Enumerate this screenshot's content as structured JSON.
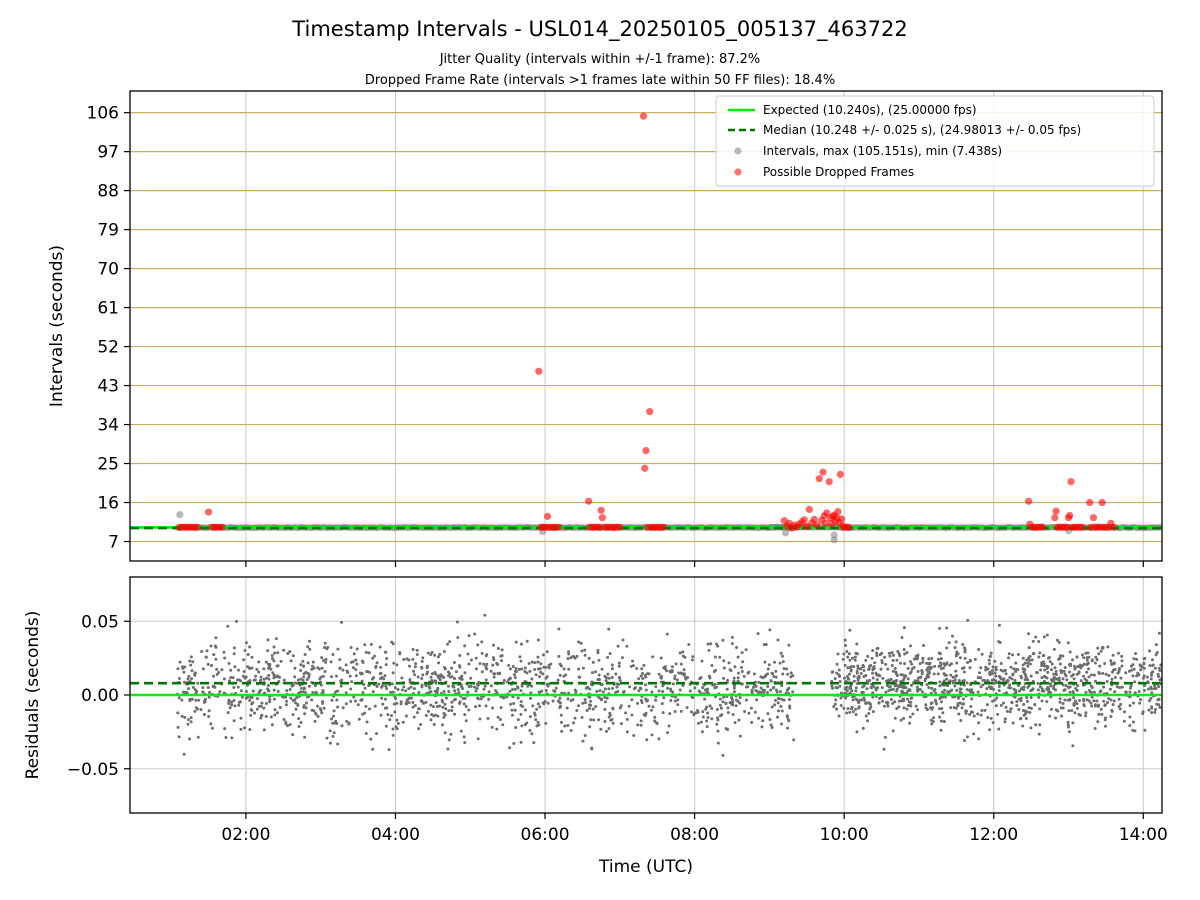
{
  "figure": {
    "title": "Timestamp Intervals - USL014_20250105_005137_463722",
    "subtitle_1": "Jitter Quality (intervals within +/-1 frame): 87.2%",
    "subtitle_2": "Dropped Frame Rate (intervals >1 frames late within 50 FF files): 18.4%"
  },
  "colors": {
    "expected": "#00ee00",
    "median": "#007700",
    "intervals": "#808080",
    "dropped": "#ff0000",
    "hgrid_top": "#c8b060",
    "vgrid": "#cccccc",
    "residuals": "#6e6e6e"
  },
  "chart_data": [
    {
      "type": "scatter",
      "panel": "intervals",
      "xlabel": "",
      "ylabel": "Intervals (seconds)",
      "xlim_hours": [
        0.45,
        14.25
      ],
      "ylim": [
        2.5,
        111
      ],
      "y_ticks": [
        7,
        16,
        25,
        34,
        43,
        52,
        61,
        70,
        79,
        88,
        97,
        106
      ],
      "y_tick_labels": [
        "7",
        "16",
        "25",
        "34",
        "43",
        "52",
        "61",
        "70",
        "79",
        "88",
        "97",
        "106"
      ],
      "x_ticks_hours": [
        2,
        4,
        6,
        8,
        10,
        12,
        14
      ],
      "grid": "on",
      "legend": {
        "placement": "top-right",
        "entries": [
          "Expected (10.240s), (25.00000 fps)",
          "Median (10.248 +/- 0.025 s), (24.98013 +/- 0.05 fps)",
          "Intervals, max (105.151s), min (7.438s)",
          "Possible Dropped Frames"
        ]
      },
      "expected_interval_s": 10.24,
      "median_interval_s": 10.248,
      "interval_segments": [
        {
          "start": "01:05",
          "end": "09:20",
          "value_s": 10.24
        },
        {
          "start": "09:00",
          "end": "09:55",
          "value_s": 10.3
        },
        {
          "start": "09:55",
          "end": "14:15",
          "value_s": 10.24
        }
      ],
      "gray_outliers": [
        {
          "x": "01:07",
          "y": 13.2
        },
        {
          "x": "05:58",
          "y": 9.3
        },
        {
          "x": "09:52",
          "y": 7.4
        },
        {
          "x": "09:52",
          "y": 8.5
        },
        {
          "x": "09:13",
          "y": 9.0
        },
        {
          "x": "13:00",
          "y": 9.5
        }
      ],
      "dropped_frames": [
        {
          "x": "01:07",
          "y": 10.3
        },
        {
          "x": "01:09",
          "y": 10.3
        },
        {
          "x": "01:11",
          "y": 10.3
        },
        {
          "x": "01:13",
          "y": 10.3
        },
        {
          "x": "01:15",
          "y": 10.3
        },
        {
          "x": "01:17",
          "y": 10.3
        },
        {
          "x": "01:19",
          "y": 10.3
        },
        {
          "x": "01:21",
          "y": 10.3
        },
        {
          "x": "01:30",
          "y": 13.8
        },
        {
          "x": "01:33",
          "y": 10.3
        },
        {
          "x": "01:35",
          "y": 10.3
        },
        {
          "x": "01:37",
          "y": 10.3
        },
        {
          "x": "01:39",
          "y": 10.3
        },
        {
          "x": "01:41",
          "y": 10.3
        },
        {
          "x": "05:55",
          "y": 46.3
        },
        {
          "x": "05:57",
          "y": 10.3
        },
        {
          "x": "05:59",
          "y": 10.3
        },
        {
          "x": "06:01",
          "y": 10.3
        },
        {
          "x": "06:02",
          "y": 12.8
        },
        {
          "x": "06:03",
          "y": 10.3
        },
        {
          "x": "06:05",
          "y": 10.3
        },
        {
          "x": "06:07",
          "y": 10.3
        },
        {
          "x": "06:09",
          "y": 10.3
        },
        {
          "x": "06:11",
          "y": 10.3
        },
        {
          "x": "06:35",
          "y": 16.3
        },
        {
          "x": "06:36",
          "y": 10.3
        },
        {
          "x": "06:38",
          "y": 10.3
        },
        {
          "x": "06:40",
          "y": 10.3
        },
        {
          "x": "06:42",
          "y": 10.3
        },
        {
          "x": "06:44",
          "y": 10.3
        },
        {
          "x": "06:45",
          "y": 14.2
        },
        {
          "x": "06:46",
          "y": 12.5
        },
        {
          "x": "06:48",
          "y": 10.3
        },
        {
          "x": "06:50",
          "y": 10.3
        },
        {
          "x": "06:52",
          "y": 10.3
        },
        {
          "x": "06:54",
          "y": 10.3
        },
        {
          "x": "06:56",
          "y": 10.3
        },
        {
          "x": "06:58",
          "y": 10.3
        },
        {
          "x": "07:00",
          "y": 10.3
        },
        {
          "x": "07:19",
          "y": 105.2
        },
        {
          "x": "07:20",
          "y": 23.9
        },
        {
          "x": "07:21",
          "y": 28.0
        },
        {
          "x": "07:22",
          "y": 10.3
        },
        {
          "x": "07:24",
          "y": 37.0
        },
        {
          "x": "07:25",
          "y": 10.3
        },
        {
          "x": "07:27",
          "y": 10.3
        },
        {
          "x": "07:29",
          "y": 10.3
        },
        {
          "x": "07:31",
          "y": 10.3
        },
        {
          "x": "07:33",
          "y": 10.3
        },
        {
          "x": "07:35",
          "y": 10.3
        },
        {
          "x": "09:12",
          "y": 11.8
        },
        {
          "x": "09:14",
          "y": 10.6
        },
        {
          "x": "09:16",
          "y": 11.2
        },
        {
          "x": "09:18",
          "y": 10.1
        },
        {
          "x": "09:20",
          "y": 10.8
        },
        {
          "x": "09:22",
          "y": 10.3
        },
        {
          "x": "09:24",
          "y": 11.0
        },
        {
          "x": "09:26",
          "y": 11.5
        },
        {
          "x": "09:28",
          "y": 12.0
        },
        {
          "x": "09:30",
          "y": 10.5
        },
        {
          "x": "09:32",
          "y": 14.4
        },
        {
          "x": "09:34",
          "y": 11.3
        },
        {
          "x": "09:36",
          "y": 12.1
        },
        {
          "x": "09:38",
          "y": 10.8
        },
        {
          "x": "09:40",
          "y": 21.5
        },
        {
          "x": "09:42",
          "y": 11.9
        },
        {
          "x": "09:43",
          "y": 23.0
        },
        {
          "x": "09:44",
          "y": 12.9
        },
        {
          "x": "09:45",
          "y": 11.2
        },
        {
          "x": "09:46",
          "y": 13.6
        },
        {
          "x": "09:48",
          "y": 20.8
        },
        {
          "x": "09:49",
          "y": 12.4
        },
        {
          "x": "09:50",
          "y": 11.1
        },
        {
          "x": "09:51",
          "y": 12.8
        },
        {
          "x": "09:52",
          "y": 13.1
        },
        {
          "x": "09:53",
          "y": 11.7
        },
        {
          "x": "09:54",
          "y": 12.5
        },
        {
          "x": "09:55",
          "y": 13.9
        },
        {
          "x": "09:56",
          "y": 11.4
        },
        {
          "x": "09:57",
          "y": 22.5
        },
        {
          "x": "09:58",
          "y": 12.2
        },
        {
          "x": "09:59",
          "y": 10.6
        },
        {
          "x": "10:00",
          "y": 10.3
        },
        {
          "x": "10:02",
          "y": 10.3
        },
        {
          "x": "10:04",
          "y": 10.3
        },
        {
          "x": "12:28",
          "y": 16.3
        },
        {
          "x": "12:29",
          "y": 11.0
        },
        {
          "x": "12:31",
          "y": 10.3
        },
        {
          "x": "12:33",
          "y": 10.3
        },
        {
          "x": "12:35",
          "y": 10.3
        },
        {
          "x": "12:37",
          "y": 10.3
        },
        {
          "x": "12:39",
          "y": 10.3
        },
        {
          "x": "12:49",
          "y": 12.5
        },
        {
          "x": "12:50",
          "y": 14.0
        },
        {
          "x": "12:51",
          "y": 10.3
        },
        {
          "x": "12:53",
          "y": 10.3
        },
        {
          "x": "12:55",
          "y": 10.3
        },
        {
          "x": "12:57",
          "y": 10.3
        },
        {
          "x": "12:59",
          "y": 10.3
        },
        {
          "x": "13:00",
          "y": 12.5
        },
        {
          "x": "13:01",
          "y": 13.0
        },
        {
          "x": "13:02",
          "y": 20.8
        },
        {
          "x": "13:03",
          "y": 10.3
        },
        {
          "x": "13:05",
          "y": 10.3
        },
        {
          "x": "13:07",
          "y": 10.3
        },
        {
          "x": "13:09",
          "y": 10.3
        },
        {
          "x": "13:11",
          "y": 10.3
        },
        {
          "x": "13:17",
          "y": 16.0
        },
        {
          "x": "13:18",
          "y": 10.3
        },
        {
          "x": "13:20",
          "y": 12.5
        },
        {
          "x": "13:21",
          "y": 10.3
        },
        {
          "x": "13:23",
          "y": 10.3
        },
        {
          "x": "13:25",
          "y": 10.3
        },
        {
          "x": "13:27",
          "y": 16.0
        },
        {
          "x": "13:28",
          "y": 10.3
        },
        {
          "x": "13:30",
          "y": 10.3
        },
        {
          "x": "13:32",
          "y": 10.3
        },
        {
          "x": "13:34",
          "y": 11.2
        },
        {
          "x": "13:36",
          "y": 10.3
        }
      ]
    },
    {
      "type": "scatter",
      "panel": "residuals",
      "xlabel": "Time (UTC)",
      "ylabel": "Residuals (seconds)",
      "xlim_hours": [
        0.45,
        14.25
      ],
      "ylim": [
        -0.08,
        0.08
      ],
      "y_ticks": [
        -0.05,
        0.0,
        0.05
      ],
      "y_tick_labels": [
        "−0.05",
        "0.00",
        "0.05"
      ],
      "x_ticks_hours": [
        2,
        4,
        6,
        8,
        10,
        12,
        14
      ],
      "x_tick_labels": [
        "02:00",
        "04:00",
        "06:00",
        "08:00",
        "10:00",
        "12:00",
        "14:00"
      ],
      "grid": "on",
      "expected_residual_s": 0.0,
      "median_residual_s": 0.008,
      "residual_segments": [
        {
          "start": "01:05",
          "end": "09:20",
          "mean_s": 0.005,
          "spread_s": 0.022,
          "count": 1500
        },
        {
          "start": "09:50",
          "end": "14:15",
          "mean_s": 0.008,
          "spread_s": 0.02,
          "count": 1150
        }
      ]
    }
  ]
}
